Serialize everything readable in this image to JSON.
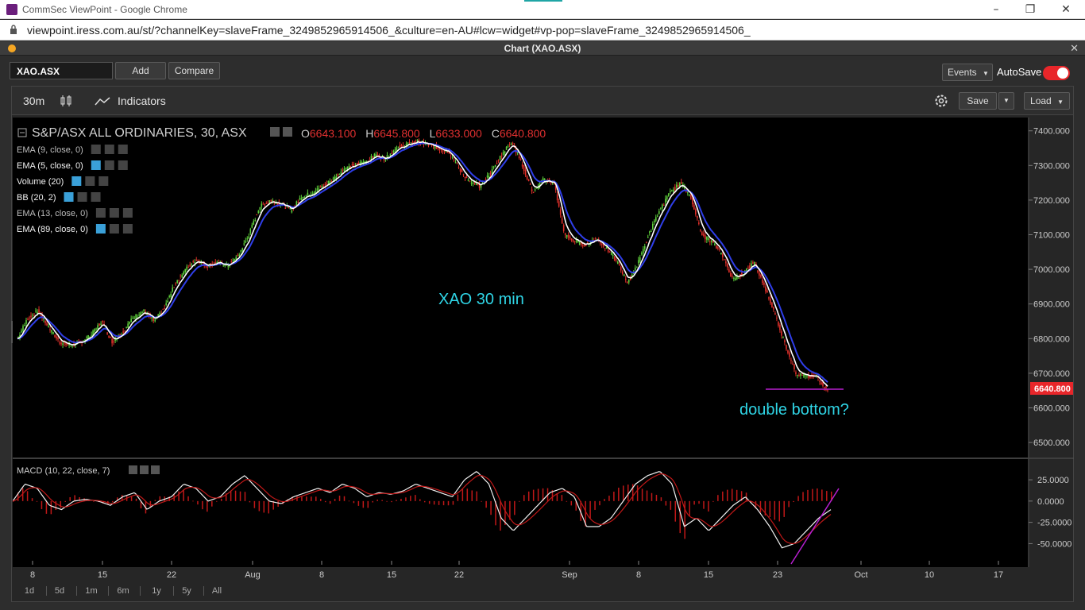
{
  "browser": {
    "title": "CommSec ViewPoint - Google Chrome",
    "url": "viewpoint.iress.com.au/st/?channelKey=slaveFrame_3249852965914506_&culture=en-AU#lcw=widget#vp-pop=slaveFrame_3249852965914506_"
  },
  "window": {
    "title": "Chart (XAO.ASX)"
  },
  "toolbar": {
    "symbol": "XAO.ASX",
    "add_label": "Add",
    "compare_label": "Compare",
    "events_label": "Events",
    "autosave_label": "AutoSave",
    "autosave_on": true
  },
  "chart_toolbar": {
    "interval": "30m",
    "indicators_label": "Indicators",
    "save_label": "Save",
    "load_label": "Load"
  },
  "ranges": [
    "1d",
    "5d",
    "1m",
    "6m",
    "1y",
    "5y",
    "All"
  ],
  "colors": {
    "accent": "#e8262a",
    "cyan": "#2fd5e6",
    "up": "#5ecf3a",
    "down": "#e0302a",
    "ema_fast": "#ffffff",
    "ema_slow": "#2f3ee8",
    "trend": "#b81fd0"
  },
  "chart_data": {
    "type": "candlestick",
    "title": "S&P/ASX ALL ORDINARIES, 30, ASX",
    "ohlc": {
      "o_label": "O",
      "o": "6643.100",
      "h_label": "H",
      "h": "6645.800",
      "l_label": "L",
      "l": "6633.000",
      "c_label": "C",
      "c": "6640.800"
    },
    "last_price": "6640.800",
    "y_ticks": [
      "7400.000",
      "7300.000",
      "7200.000",
      "7100.000",
      "7000.000",
      "6900.000",
      "6800.000",
      "6700.000",
      "6600.000",
      "6500.000"
    ],
    "ylim": [
      6475,
      7420
    ],
    "x_ticks": [
      "8",
      "15",
      "22",
      "Aug",
      "8",
      "15",
      "22",
      "Sep",
      "8",
      "15",
      "23",
      "Oct",
      "10",
      "17"
    ],
    "indicators": [
      {
        "label": "EMA (9, close, 0)",
        "active": false
      },
      {
        "label": "EMA (5, close, 0)",
        "active": true
      },
      {
        "label": "Volume (20)",
        "active": true
      },
      {
        "label": "BB (20, 2)",
        "active": true
      },
      {
        "label": "EMA (13, close, 0)",
        "active": false
      },
      {
        "label": "EMA (89, close, 0)",
        "active": true
      }
    ],
    "price_path": [
      6800,
      6860,
      6880,
      6830,
      6790,
      6780,
      6790,
      6810,
      6850,
      6790,
      6820,
      6860,
      6880,
      6850,
      6890,
      6960,
      7000,
      7030,
      7010,
      7020,
      7010,
      7040,
      7100,
      7180,
      7200,
      7190,
      7170,
      7210,
      7220,
      7240,
      7260,
      7290,
      7300,
      7310,
      7330,
      7320,
      7350,
      7360,
      7370,
      7360,
      7350,
      7340,
      7290,
      7250,
      7240,
      7280,
      7330,
      7370,
      7300,
      7220,
      7260,
      7250,
      7100,
      7080,
      7070,
      7090,
      7060,
      7020,
      6960,
      7020,
      7100,
      7170,
      7220,
      7250,
      7210,
      7100,
      7080,
      7040,
      6970,
      6990,
      7020,
      6950,
      6870,
      6780,
      6700,
      6690,
      6690,
      6650
    ],
    "macd_ticks": [
      "25.0000",
      "0.0000",
      "-25.0000",
      "-50.0000"
    ],
    "macd_ylim": [
      -72,
      40
    ],
    "macd_label": "MACD (10, 22, close, 7)",
    "macd_path": [
      0,
      20,
      15,
      -5,
      -10,
      0,
      2,
      0,
      -5,
      5,
      10,
      -10,
      0,
      5,
      20,
      15,
      0,
      5,
      20,
      30,
      15,
      0,
      -3,
      5,
      10,
      15,
      10,
      20,
      15,
      5,
      10,
      8,
      12,
      20,
      15,
      10,
      5,
      25,
      35,
      20,
      -20,
      -35,
      -20,
      -5,
      10,
      15,
      5,
      -30,
      -30,
      -20,
      0,
      20,
      30,
      35,
      20,
      -30,
      -20,
      -35,
      -20,
      -5,
      5,
      -10,
      -30,
      -55,
      -50,
      -35,
      -20,
      -10
    ],
    "annotations": [
      "XAO 30 min",
      "double bottom?"
    ]
  }
}
